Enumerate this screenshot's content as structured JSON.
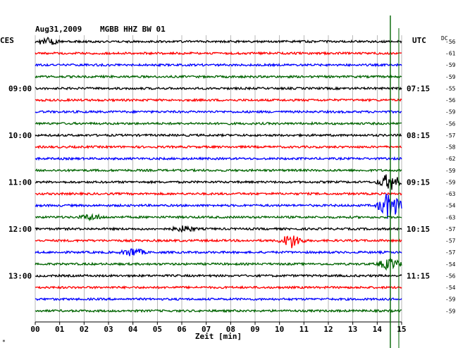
{
  "header": {
    "date": "Aug31,2009",
    "station": "MGBB HHZ BW 01"
  },
  "left_zone": "CES",
  "right_zone": "UTC",
  "dc_label": "DC",
  "footer_mark": "*",
  "chart_data": {
    "type": "line",
    "title": "Aug31,2009  MGBB HHZ BW 01",
    "xlabel": "Zeit [min]",
    "xlim": [
      0,
      15
    ],
    "x_ticks": [
      "00",
      "01",
      "02",
      "03",
      "04",
      "05",
      "06",
      "07",
      "08",
      "09",
      "10",
      "11",
      "12",
      "13",
      "14",
      "15"
    ],
    "grid": true,
    "trace_colors": [
      "#000000",
      "#ff0000",
      "#0000ff",
      "#006400"
    ],
    "left_hour_labels": [
      {
        "row": 4,
        "label": "09:00"
      },
      {
        "row": 8,
        "label": "10:00"
      },
      {
        "row": 12,
        "label": "11:00"
      },
      {
        "row": 16,
        "label": "12:00"
      },
      {
        "row": 20,
        "label": "13:00"
      }
    ],
    "right_hour_labels": [
      {
        "row": 4,
        "label": "07:15"
      },
      {
        "row": 8,
        "label": "08:15"
      },
      {
        "row": 12,
        "label": "09:15"
      },
      {
        "row": 16,
        "label": "10:15"
      },
      {
        "row": 20,
        "label": "11:15"
      }
    ],
    "dc_offsets": [
      "-56",
      "-61",
      "-59",
      "-59",
      "-55",
      "-56",
      "-59",
      "-56",
      "-57",
      "-58",
      "-62",
      "-59",
      "-59",
      "-63",
      "-54",
      "-63",
      "-57",
      "-57",
      "-57",
      "-54",
      "-56",
      "-54",
      "-59",
      "-59"
    ],
    "events": [
      {
        "row": 0,
        "minute": 0.5,
        "amplitude": 5
      },
      {
        "row": 12,
        "minute": 14.5,
        "amplitude": 12
      },
      {
        "row": 14,
        "minute": 14.5,
        "amplitude": 20
      },
      {
        "row": 15,
        "minute": 2.3,
        "amplitude": 4
      },
      {
        "row": 16,
        "minute": 6.1,
        "amplitude": 4
      },
      {
        "row": 17,
        "minute": 10.5,
        "amplitude": 10
      },
      {
        "row": 18,
        "minute": 4.0,
        "amplitude": 6
      },
      {
        "row": 19,
        "minute": 14.5,
        "amplitude": 8
      }
    ]
  }
}
